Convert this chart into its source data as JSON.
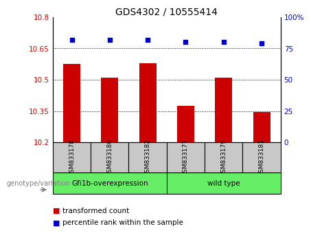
{
  "title": "GDS4302 / 10555414",
  "categories": [
    "GSM833178",
    "GSM833180",
    "GSM833182",
    "GSM833177",
    "GSM833179",
    "GSM833181"
  ],
  "bar_values": [
    10.575,
    10.51,
    10.58,
    10.375,
    10.51,
    10.345
  ],
  "percentile_values": [
    82,
    82,
    82,
    80,
    80,
    79
  ],
  "bar_color": "#cc0000",
  "dot_color": "#0000cc",
  "ylim_left": [
    10.2,
    10.8
  ],
  "ylim_right": [
    0,
    100
  ],
  "yticks_left": [
    10.2,
    10.35,
    10.5,
    10.65,
    10.8
  ],
  "ytick_labels_left": [
    "10.2",
    "10.35",
    "10.5",
    "10.65",
    "10.8"
  ],
  "yticks_right": [
    0,
    25,
    50,
    75,
    100
  ],
  "ytick_labels_right": [
    "0",
    "25",
    "50",
    "75",
    "100%"
  ],
  "hlines": [
    10.35,
    10.5,
    10.65
  ],
  "group1_label": "Gfi1b-overexpression",
  "group2_label": "wild type",
  "group1_color": "#66ee66",
  "group2_color": "#66ee66",
  "genotype_label": "genotype/variation",
  "legend_bar_label": "transformed count",
  "legend_dot_label": "percentile rank within the sample",
  "bar_width": 0.45,
  "tick_label_color_left": "#cc0000",
  "tick_label_color_right": "#0000cc",
  "gray_bg": "#c8c8c8"
}
